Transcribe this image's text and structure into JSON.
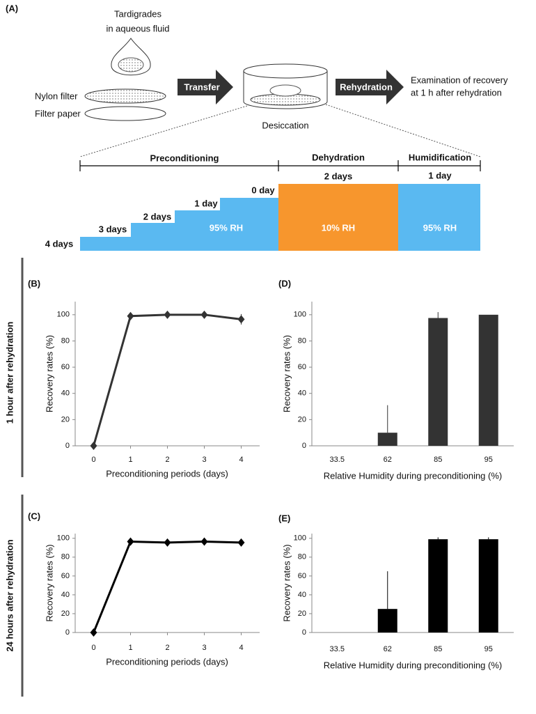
{
  "diagram": {
    "panel_label": "(A)",
    "sample_label": [
      "Tardigrades",
      "in aqueous fluid"
    ],
    "nylon_filter": "Nylon filter",
    "filter_paper": "Filter paper",
    "transfer": "Transfer",
    "desiccation": "Desiccation",
    "rehydration": "Rehydration",
    "examination": [
      "Examination of recovery",
      "at 1 h after rehydration"
    ],
    "preconditioning": "Preconditioning",
    "dehydration": "Dehydration",
    "humidification": "Humidification",
    "steps": [
      "4 days",
      "3 days",
      "2 days",
      "1 day",
      "0 day"
    ],
    "dehydration_duration": "2 days",
    "humidification_duration": "1 day",
    "rh_labels": [
      "95% RH",
      "10% RH",
      "95% RH"
    ],
    "row_labels": [
      "1 hour after rehydration",
      "24 hours after rehydration"
    ]
  },
  "chart_data": [
    {
      "type": "line",
      "panel_label": "(B)",
      "x_label": "Preconditioning  periods (days)",
      "y_label": "Recovery rates (%)",
      "x": [
        0,
        1,
        2,
        3,
        4
      ],
      "values": [
        0,
        99,
        100,
        100,
        96.5
      ],
      "errors": [
        0,
        0,
        0,
        0,
        4
      ],
      "color": "#333333",
      "xlim": [
        -0.5,
        4.5
      ],
      "xticks": [
        0,
        1,
        2,
        3,
        4
      ],
      "ylim": [
        0,
        110
      ],
      "yticks": [
        0,
        20,
        40,
        60,
        80,
        100
      ]
    },
    {
      "type": "line",
      "panel_label": "(C)",
      "x_label": "Preconditioning  periods (days)",
      "y_label": "Recovery rates (%)",
      "x": [
        0,
        1,
        2,
        3,
        4
      ],
      "values": [
        0,
        96.5,
        95.5,
        96.5,
        95.5
      ],
      "errors": [
        0,
        0,
        0,
        0,
        0
      ],
      "color": "#000000",
      "xlim": [
        -0.5,
        4.5
      ],
      "xticks": [
        0,
        1,
        2,
        3,
        4
      ],
      "ylim": [
        0,
        105
      ],
      "yticks": [
        0,
        20,
        40,
        60,
        80,
        100
      ]
    },
    {
      "type": "bar",
      "panel_label": "(D)",
      "x_label": "Relative Humidity during preconditioning (%)",
      "y_label": "Recovery rates (%)",
      "categories": [
        "33.5",
        "62",
        "85",
        "95"
      ],
      "values": [
        0,
        10,
        97.5,
        100
      ],
      "errors": [
        0,
        21,
        4.5,
        0
      ],
      "color": "#333333",
      "ylim": [
        0,
        110
      ],
      "yticks": [
        0,
        20,
        40,
        60,
        80,
        100
      ]
    },
    {
      "type": "bar",
      "panel_label": "(E)",
      "x_label": "Relative Humidity during preconditioning (%)",
      "y_label": "Recovery rates (%)",
      "categories": [
        "33.5",
        "62",
        "85",
        "95"
      ],
      "values": [
        0,
        25,
        99,
        99
      ],
      "errors": [
        0,
        40,
        2,
        2
      ],
      "color": "#000000",
      "ylim": [
        0,
        105
      ],
      "yticks": [
        0,
        20,
        40,
        60,
        80,
        100
      ]
    }
  ]
}
